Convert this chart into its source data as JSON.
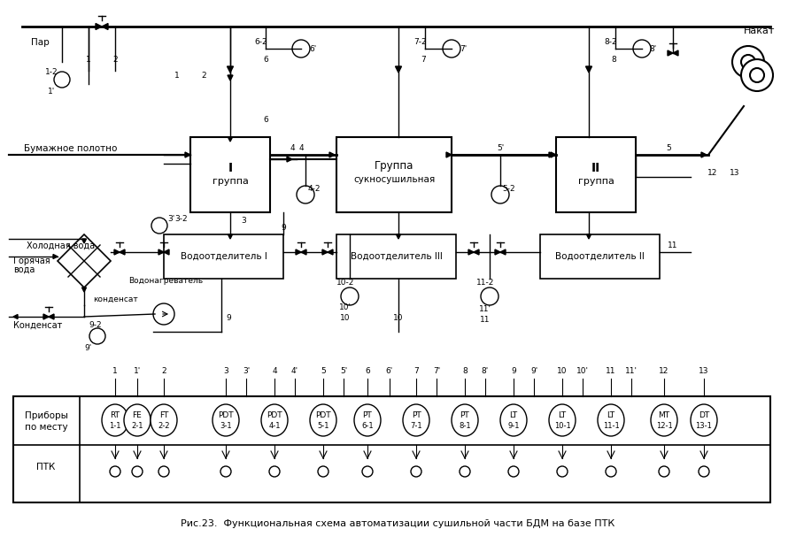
{
  "title": "Рис.23.  Функциональная схема автоматизации сушильной части БДМ на базе ПТК",
  "bg_color": "#ffffff",
  "line_color": "#000000",
  "instruments": [
    {
      "label": "RT\n1-1",
      "x": 0
    },
    {
      "label": "FE\n2-1",
      "x": 1
    },
    {
      "label": "FT\n2-2",
      "x": 2
    },
    {
      "label": "PDT\n3-1",
      "x": 3
    },
    {
      "label": "PDT\n4-1",
      "x": 4
    },
    {
      "label": "PDT\n5-1",
      "x": 5
    },
    {
      "label": "PT\n6-1",
      "x": 6
    },
    {
      "label": "PT\n7-1",
      "x": 7
    },
    {
      "label": "PT\n8-1",
      "x": 8
    },
    {
      "label": "LT\n9-1",
      "x": 9
    },
    {
      "label": "LT\n10-1",
      "x": 10
    },
    {
      "label": "LT\n11-1",
      "x": 11
    },
    {
      "label": "MT\n12-1",
      "x": 12
    },
    {
      "label": "DT\n13-1",
      "x": 13
    }
  ],
  "col_labels": [
    "1",
    "1'",
    "2",
    "3",
    "3'",
    "4",
    "4'",
    "5",
    "5'",
    "6",
    "6'",
    "7",
    "7'",
    "8",
    "8'",
    "9",
    "9'",
    "10",
    "10'",
    "11",
    "11'",
    "12",
    "13"
  ]
}
